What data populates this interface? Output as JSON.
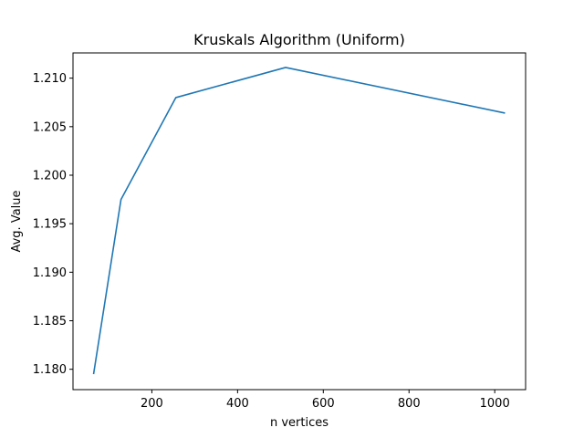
{
  "chart_data": {
    "type": "line",
    "title": "Kruskals Algorithm (Uniform)",
    "xlabel": "n vertices",
    "ylabel": "Avg. Value",
    "xlim": [
      16,
      1072
    ],
    "ylim": [
      1.1779,
      1.2126
    ],
    "grid": false,
    "x_ticks": [
      200,
      400,
      600,
      800,
      1000
    ],
    "x_tick_labels": [
      "200",
      "400",
      "600",
      "800",
      "1000"
    ],
    "y_ticks": [
      1.18,
      1.185,
      1.19,
      1.195,
      1.2,
      1.205,
      1.21
    ],
    "y_tick_labels": [
      "1.180",
      "1.185",
      "1.190",
      "1.195",
      "1.200",
      "1.205",
      "1.210"
    ],
    "x": [
      64,
      128,
      256,
      512,
      1024
    ],
    "series": [
      {
        "values": [
          1.1795,
          1.1975,
          1.208,
          1.2111,
          1.2064
        ],
        "color": "#1f77b4"
      }
    ]
  }
}
